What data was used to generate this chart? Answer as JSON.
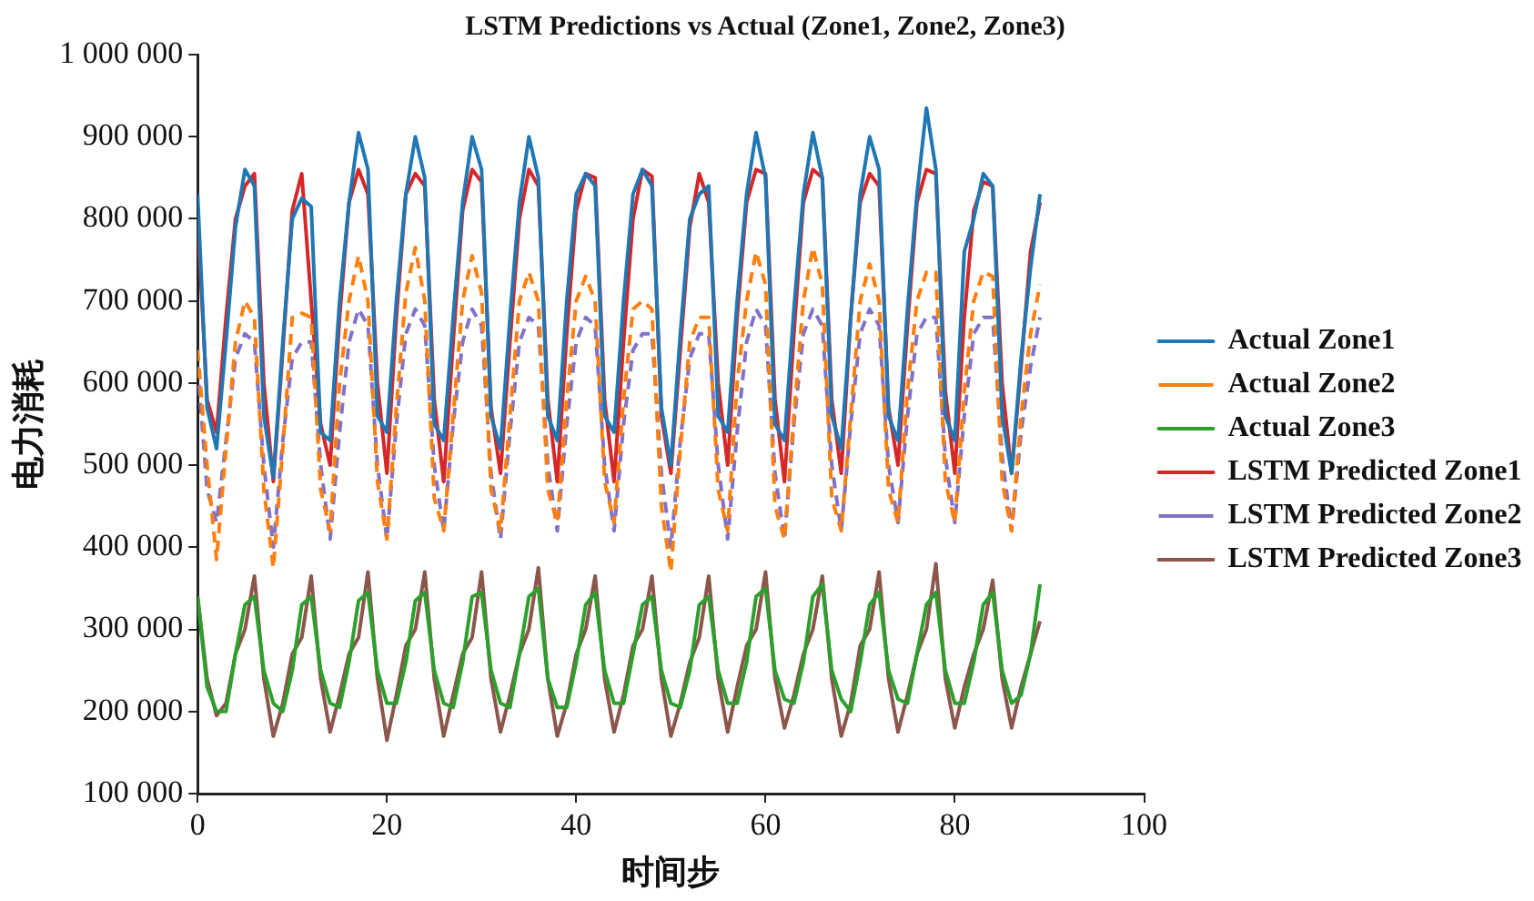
{
  "chart_data": {
    "type": "line",
    "title": "LSTM Predictions vs Actual (Zone1, Zone2, Zone3)",
    "xlabel": "时间步",
    "ylabel": "电力消耗",
    "x": [
      0,
      1,
      2,
      3,
      4,
      5,
      6,
      7,
      8,
      9,
      10,
      11,
      12,
      13,
      14,
      15,
      16,
      17,
      18,
      19,
      20,
      21,
      22,
      23,
      24,
      25,
      26,
      27,
      28,
      29,
      30,
      31,
      32,
      33,
      34,
      35,
      36,
      37,
      38,
      39,
      40,
      41,
      42,
      43,
      44,
      45,
      46,
      47,
      48,
      49,
      50,
      51,
      52,
      53,
      54,
      55,
      56,
      57,
      58,
      59,
      60,
      61,
      62,
      63,
      64,
      65,
      66,
      67,
      68,
      69,
      70,
      71,
      72,
      73,
      74,
      75,
      76,
      77,
      78,
      79,
      80,
      81,
      82,
      83,
      84,
      85,
      86,
      87,
      88,
      89
    ],
    "xlim": [
      0,
      100
    ],
    "xticks": [
      0,
      20,
      40,
      60,
      80,
      100
    ],
    "ylim": [
      100000,
      1000000
    ],
    "yticks": [
      {
        "value": 100000,
        "label": "100 000"
      },
      {
        "value": 200000,
        "label": "200 000"
      },
      {
        "value": 300000,
        "label": "300 000"
      },
      {
        "value": 400000,
        "label": "400 000"
      },
      {
        "value": 500000,
        "label": "500 000"
      },
      {
        "value": 600000,
        "label": "600 000"
      },
      {
        "value": 700000,
        "label": "700 000"
      },
      {
        "value": 800000,
        "label": "800 000"
      },
      {
        "value": 900000,
        "label": "900 000"
      },
      {
        "value": 1000000,
        "label": "1 000 000"
      }
    ],
    "grid": false,
    "legend": "right",
    "marker": "none",
    "series": [
      {
        "name": "Actual Zone1",
        "color": "#1f77b4",
        "line_style": "solid",
        "values": [
          830000,
          570000,
          520000,
          650000,
          790000,
          860000,
          840000,
          560000,
          485000,
          650000,
          800000,
          825000,
          815000,
          540000,
          530000,
          700000,
          820000,
          905000,
          860000,
          560000,
          540000,
          700000,
          830000,
          900000,
          850000,
          550000,
          530000,
          680000,
          820000,
          900000,
          860000,
          560000,
          520000,
          680000,
          820000,
          900000,
          850000,
          560000,
          530000,
          700000,
          830000,
          855000,
          840000,
          560000,
          540000,
          700000,
          830000,
          860000,
          840000,
          570000,
          500000,
          660000,
          800000,
          830000,
          840000,
          560000,
          540000,
          700000,
          830000,
          905000,
          850000,
          550000,
          530000,
          690000,
          830000,
          905000,
          850000,
          560000,
          520000,
          680000,
          830000,
          900000,
          860000,
          560000,
          530000,
          690000,
          830000,
          935000,
          860000,
          560000,
          530000,
          760000,
          800000,
          855000,
          840000,
          560000,
          490000,
          630000,
          740000,
          830000
        ]
      },
      {
        "name": "Actual Zone2",
        "color": "#ff7f0e",
        "line_style": "dashed",
        "values": [
          640000,
          500000,
          385000,
          520000,
          650000,
          700000,
          680000,
          470000,
          375000,
          520000,
          680000,
          685000,
          680000,
          470000,
          420000,
          600000,
          700000,
          755000,
          700000,
          480000,
          410000,
          570000,
          710000,
          765000,
          700000,
          460000,
          420000,
          560000,
          700000,
          755000,
          710000,
          470000,
          420000,
          560000,
          700000,
          735000,
          700000,
          470000,
          430000,
          580000,
          700000,
          730000,
          700000,
          480000,
          430000,
          580000,
          690000,
          700000,
          690000,
          450000,
          370000,
          520000,
          650000,
          680000,
          680000,
          470000,
          420000,
          600000,
          700000,
          760000,
          720000,
          450000,
          410000,
          560000,
          700000,
          765000,
          720000,
          460000,
          420000,
          560000,
          700000,
          745000,
          700000,
          470000,
          430000,
          590000,
          700000,
          735000,
          735000,
          480000,
          430000,
          590000,
          700000,
          735000,
          730000,
          480000,
          420000,
          560000,
          660000,
          720000
        ]
      },
      {
        "name": "Actual Zone3",
        "color": "#2ca02c",
        "line_style": "solid",
        "values": [
          340000,
          230000,
          200000,
          200000,
          270000,
          330000,
          340000,
          250000,
          210000,
          200000,
          250000,
          330000,
          340000,
          250000,
          210000,
          205000,
          260000,
          335000,
          345000,
          250000,
          210000,
          210000,
          260000,
          335000,
          345000,
          250000,
          210000,
          205000,
          260000,
          340000,
          345000,
          250000,
          210000,
          205000,
          270000,
          340000,
          350000,
          240000,
          205000,
          205000,
          260000,
          330000,
          345000,
          250000,
          210000,
          210000,
          270000,
          330000,
          340000,
          250000,
          210000,
          205000,
          250000,
          330000,
          340000,
          250000,
          210000,
          210000,
          260000,
          340000,
          350000,
          250000,
          215000,
          210000,
          260000,
          340000,
          355000,
          250000,
          215000,
          200000,
          260000,
          330000,
          345000,
          250000,
          215000,
          210000,
          270000,
          330000,
          345000,
          250000,
          210000,
          210000,
          260000,
          330000,
          345000,
          250000,
          210000,
          220000,
          270000,
          355000
        ]
      },
      {
        "name": "LSTM Predicted Zone1",
        "color": "#d62728",
        "line_style": "solid",
        "values": [
          800000,
          580000,
          540000,
          680000,
          800000,
          840000,
          855000,
          600000,
          480000,
          640000,
          810000,
          855000,
          700000,
          550000,
          500000,
          680000,
          820000,
          860000,
          830000,
          600000,
          490000,
          680000,
          830000,
          855000,
          840000,
          580000,
          480000,
          650000,
          810000,
          860000,
          845000,
          570000,
          490000,
          650000,
          800000,
          860000,
          840000,
          580000,
          480000,
          660000,
          810000,
          855000,
          850000,
          580000,
          480000,
          650000,
          800000,
          860000,
          852000,
          560000,
          490000,
          640000,
          790000,
          855000,
          820000,
          600000,
          500000,
          680000,
          820000,
          860000,
          855000,
          580000,
          480000,
          660000,
          820000,
          860000,
          850000,
          580000,
          490000,
          680000,
          820000,
          855000,
          840000,
          570000,
          500000,
          670000,
          820000,
          860000,
          855000,
          590000,
          490000,
          680000,
          810000,
          845000,
          840000,
          600000,
          490000,
          620000,
          760000,
          820000
        ]
      },
      {
        "name": "LSTM Predicted Zone2",
        "color": "#8172c8",
        "line_style": "dashed",
        "values": [
          620000,
          470000,
          430000,
          530000,
          630000,
          660000,
          650000,
          500000,
          400000,
          530000,
          630000,
          650000,
          650000,
          500000,
          410000,
          540000,
          650000,
          690000,
          670000,
          500000,
          410000,
          550000,
          660000,
          690000,
          670000,
          500000,
          420000,
          550000,
          650000,
          690000,
          670000,
          490000,
          410000,
          540000,
          650000,
          680000,
          670000,
          500000,
          420000,
          550000,
          650000,
          680000,
          670000,
          500000,
          420000,
          550000,
          640000,
          660000,
          660000,
          490000,
          400000,
          530000,
          630000,
          660000,
          660000,
          500000,
          410000,
          540000,
          650000,
          690000,
          670000,
          490000,
          410000,
          550000,
          660000,
          690000,
          670000,
          500000,
          420000,
          550000,
          660000,
          690000,
          670000,
          500000,
          430000,
          560000,
          660000,
          680000,
          680000,
          510000,
          430000,
          560000,
          660000,
          680000,
          680000,
          510000,
          420000,
          540000,
          620000,
          680000
        ]
      },
      {
        "name": "LSTM Predicted Zone3",
        "color": "#8c564b",
        "line_style": "solid",
        "values": [
          340000,
          240000,
          195000,
          210000,
          270000,
          300000,
          365000,
          240000,
          170000,
          210000,
          270000,
          290000,
          365000,
          240000,
          175000,
          220000,
          270000,
          290000,
          370000,
          240000,
          165000,
          220000,
          280000,
          300000,
          370000,
          240000,
          170000,
          220000,
          270000,
          290000,
          370000,
          240000,
          175000,
          220000,
          270000,
          300000,
          375000,
          240000,
          170000,
          210000,
          270000,
          300000,
          365000,
          240000,
          175000,
          220000,
          280000,
          300000,
          365000,
          240000,
          170000,
          210000,
          260000,
          290000,
          365000,
          240000,
          175000,
          230000,
          280000,
          300000,
          370000,
          240000,
          180000,
          220000,
          270000,
          300000,
          365000,
          240000,
          170000,
          210000,
          280000,
          300000,
          370000,
          240000,
          175000,
          220000,
          270000,
          300000,
          380000,
          240000,
          180000,
          230000,
          270000,
          300000,
          360000,
          240000,
          180000,
          230000,
          270000,
          310000
        ]
      }
    ]
  }
}
